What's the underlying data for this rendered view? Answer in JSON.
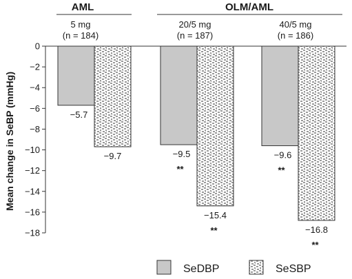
{
  "chart_data": {
    "type": "bar",
    "ylabel": "Mean change in SeBP (mmHg)",
    "ylim": [
      -18,
      0
    ],
    "yticks": [
      0,
      -2,
      -4,
      -6,
      -8,
      -10,
      -12,
      -14,
      -16,
      -18
    ],
    "header_groups": [
      {
        "title": "AML"
      },
      {
        "title": "OLM/AML"
      }
    ],
    "categories": [
      {
        "dose": "5 mg",
        "n": "(n = 184)"
      },
      {
        "dose": "20/5 mg",
        "n": "(n = 187)"
      },
      {
        "dose": "40/5 mg",
        "n": "(n = 186)"
      }
    ],
    "series": [
      {
        "name": "SeDBP",
        "color": "#c8c8c8",
        "pattern": "solid",
        "values": [
          -5.7,
          -9.5,
          -9.6
        ],
        "value_labels": [
          "−5.7",
          "−9.5",
          "−9.6"
        ],
        "significance": [
          "",
          "**",
          "**"
        ]
      },
      {
        "name": "SeSBP",
        "color": "#8a8a8a",
        "pattern": "speckled",
        "values": [
          -9.7,
          -15.4,
          -16.8
        ],
        "value_labels": [
          "−9.7",
          "−15.4",
          "−16.8"
        ],
        "significance": [
          "",
          "**",
          "**"
        ]
      }
    ]
  }
}
